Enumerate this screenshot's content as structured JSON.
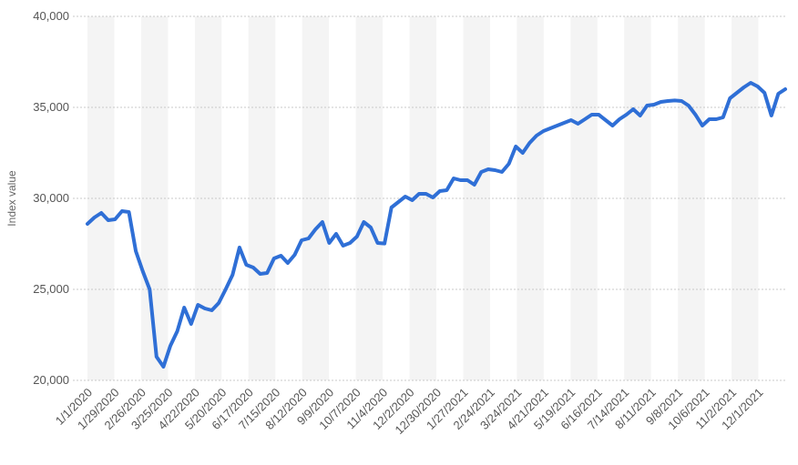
{
  "chart_data": {
    "type": "line",
    "title": "",
    "xlabel": "",
    "ylabel": "Index value",
    "ylim": [
      20000,
      40000
    ],
    "yticks": [
      20000,
      25000,
      30000,
      35000,
      40000
    ],
    "ytick_labels": [
      "20,000",
      "25,000",
      "30,000",
      "35,000",
      "40,000"
    ],
    "grid": true,
    "legend": "none",
    "line_color": "#2f6fd6",
    "band_color": "#f4f4f4",
    "xtick_labels": [
      "1/1/2020",
      "1/29/2020",
      "2/26/2020",
      "3/25/2020",
      "4/22/2020",
      "5/20/2020",
      "6/17/2020",
      "7/15/2020",
      "8/12/2020",
      "9/9/2020",
      "10/7/2020",
      "11/4/2020",
      "12/2/2020",
      "12/30/2020",
      "1/27/2021",
      "2/24/2021",
      "3/24/2021",
      "4/21/2021",
      "5/19/2021",
      "6/16/2021",
      "7/14/2021",
      "8/11/2021",
      "9/8/2021",
      "10/6/2021",
      "11/2/2021",
      "12/1/2021"
    ],
    "series": [
      {
        "values": [
          28600,
          28950,
          29200,
          28800,
          28850,
          29300,
          29250,
          27100,
          26000,
          25000,
          21300,
          20750,
          21900,
          22700,
          24000,
          23100,
          24150,
          23950,
          23850,
          24250,
          25000,
          25800,
          27300,
          26350,
          26200,
          25850,
          25900,
          26700,
          26850,
          26450,
          26900,
          27700,
          27800,
          28300,
          28700,
          27550,
          28050,
          27400,
          27550,
          27900,
          28700,
          28400,
          27550,
          27520,
          29500,
          29800,
          30100,
          29900,
          30250,
          30250,
          30050,
          30400,
          30450,
          31100,
          31000,
          31000,
          30750,
          31450,
          31600,
          31550,
          31450,
          31900,
          32850,
          32500,
          33050,
          33450,
          33700,
          33850,
          34000,
          34150,
          34300,
          34100,
          34350,
          34600,
          34600,
          34300,
          34000,
          34350,
          34600,
          34900,
          34550,
          35100,
          35150,
          35300,
          35350,
          35380,
          35350,
          35100,
          34600,
          34000,
          34350,
          34350,
          34450,
          35500,
          35800,
          36100,
          36350,
          36150,
          35800,
          34550,
          35750,
          36000
        ]
      }
    ]
  }
}
